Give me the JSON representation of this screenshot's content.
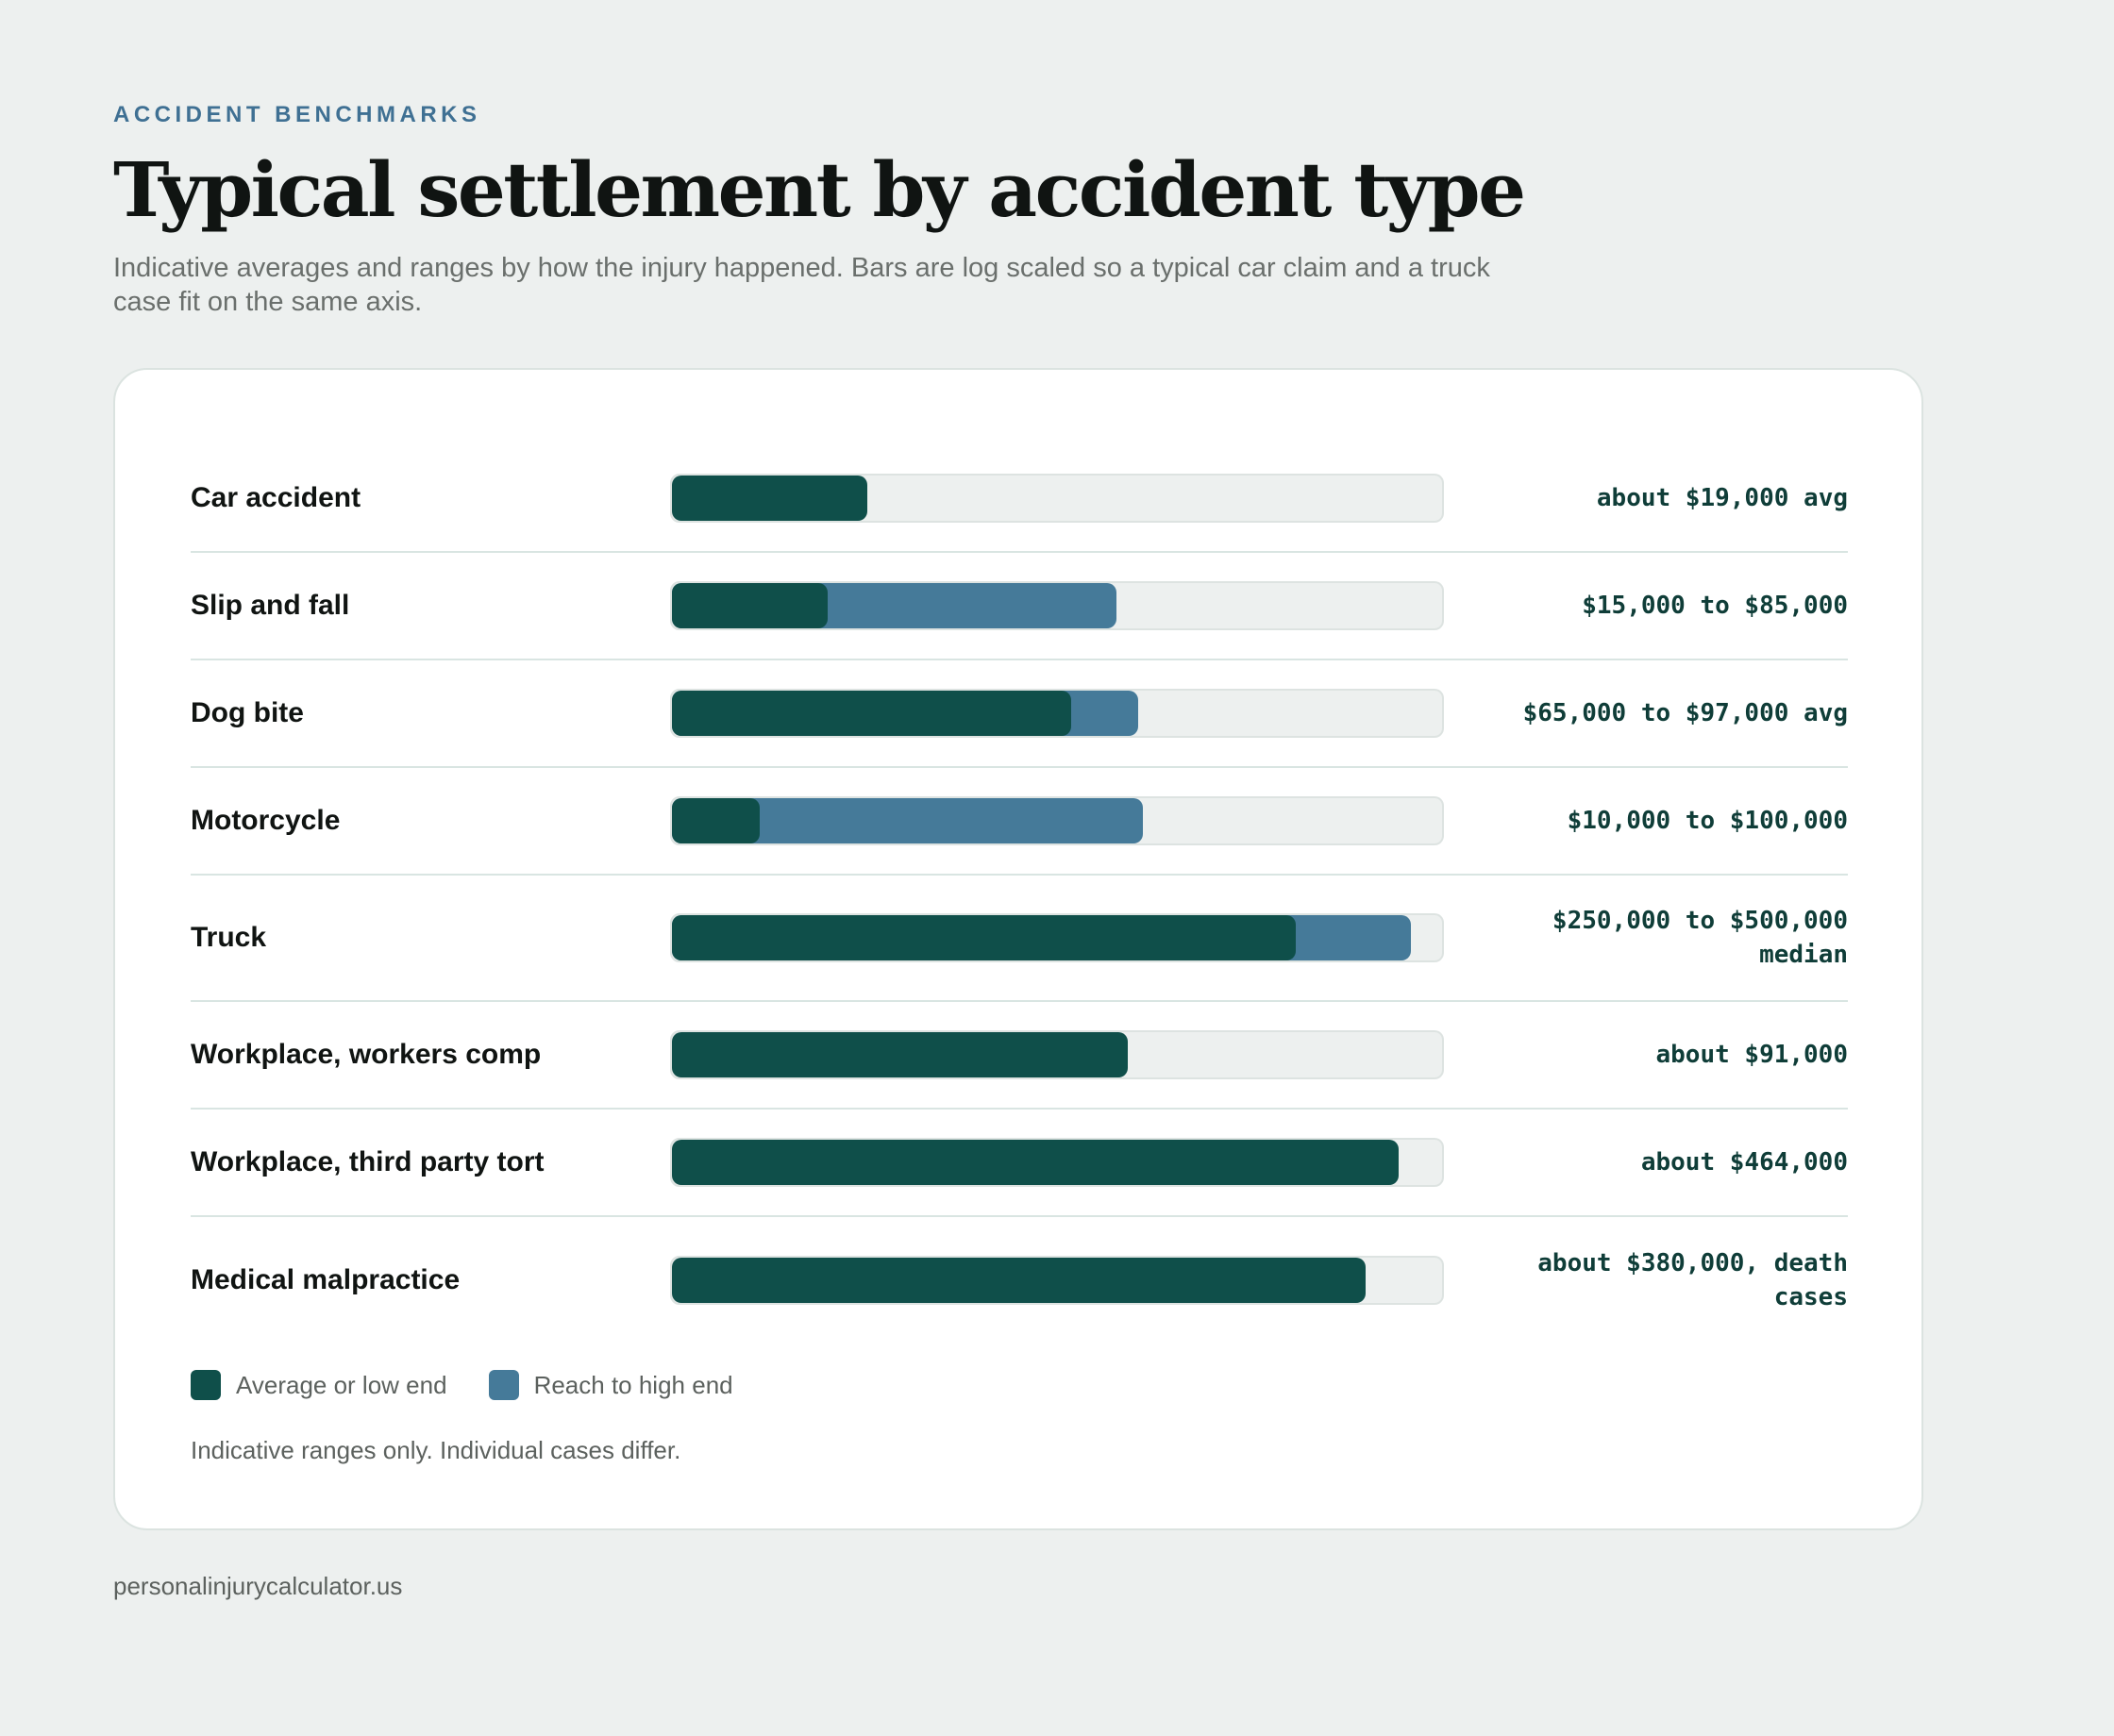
{
  "header": {
    "eyebrow": "ACCIDENT BENCHMARKS",
    "title": "Typical settlement by accident type",
    "subtitle": "Indicative averages and ranges by how the injury happened. Bars are log scaled so a typical car claim and a truck case fit on the same axis."
  },
  "colors": {
    "background": "#edf0ef",
    "base": "#0f4f4a",
    "high": "#457a99",
    "track": "#edf0ef",
    "eyebrow": "#3f7093"
  },
  "chart_data": {
    "type": "bar",
    "orientation": "horizontal",
    "scale": "log",
    "grid": false,
    "legend_position": "bottom-left",
    "categories": [
      "Car accident",
      "Slip and fall",
      "Dog bite",
      "Motorcycle",
      "Truck",
      "Workplace, workers comp",
      "Workplace, third party tort",
      "Medical malpractice"
    ],
    "series": [
      {
        "name": "Average or low end",
        "values": [
          19000,
          15000,
          65000,
          10000,
          250000,
          91000,
          464000,
          380000
        ]
      },
      {
        "name": "Reach to high end",
        "values": [
          null,
          85000,
          97000,
          100000,
          500000,
          null,
          null,
          null
        ]
      }
    ],
    "value_labels": [
      "about $19,000 avg",
      "$15,000 to $85,000",
      "$65,000 to $97,000 avg",
      "$10,000 to $100,000",
      "$250,000 to $500,000 median",
      "about $91,000",
      "about $464,000",
      "about $380,000, death cases"
    ]
  },
  "legend": {
    "base_label": "Average or low end",
    "high_label": "Reach to high end"
  },
  "footnote": "Indicative ranges only. Individual cases differ.",
  "source": "personalinjurycalculator.us"
}
